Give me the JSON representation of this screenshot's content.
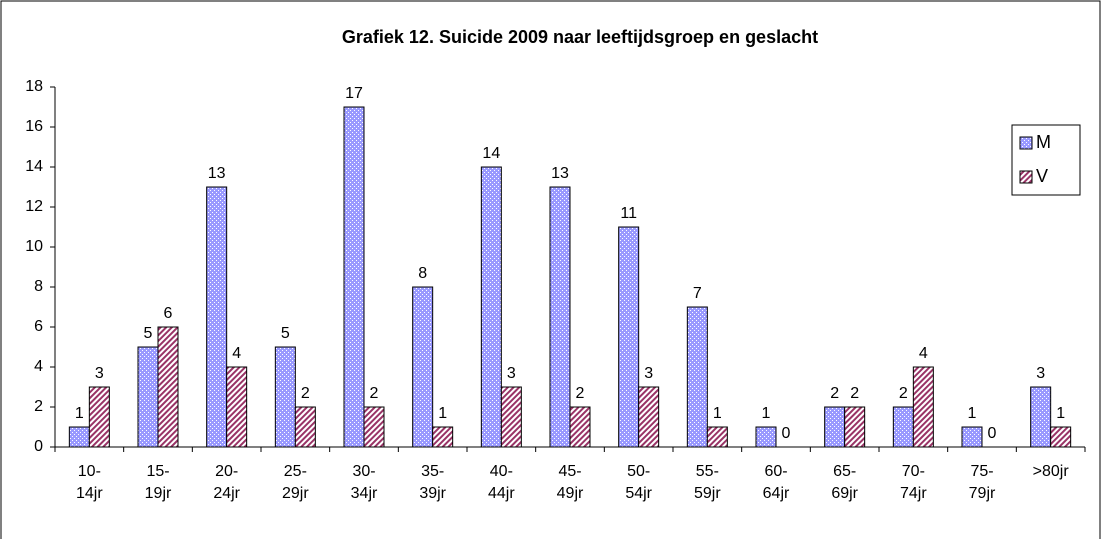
{
  "chart_data": {
    "type": "bar",
    "title": "Grafiek 12. Suicide 2009 naar leeftijdsgroep en geslacht",
    "categories": [
      "10-14jr",
      "15-19jr",
      "20-24jr",
      "25-29jr",
      "30-34jr",
      "35-39jr",
      "40-44jr",
      "45-49jr",
      "50-54jr",
      "55-59jr",
      "60-64jr",
      "65-69jr",
      "70-74jr",
      "75-79jr",
      ">80jr"
    ],
    "series": [
      {
        "name": "M",
        "color": "#9999ff",
        "values": [
          1,
          5,
          13,
          5,
          17,
          8,
          14,
          13,
          11,
          7,
          1,
          2,
          2,
          1,
          3
        ]
      },
      {
        "name": "V",
        "color": "#993366",
        "values": [
          3,
          6,
          4,
          2,
          2,
          1,
          3,
          2,
          3,
          1,
          0,
          2,
          4,
          0,
          1
        ]
      }
    ],
    "ylim": [
      0,
      18
    ],
    "yticks": [
      0,
      2,
      4,
      6,
      8,
      10,
      12,
      14,
      16,
      18
    ],
    "grid": false,
    "legend": "right"
  }
}
